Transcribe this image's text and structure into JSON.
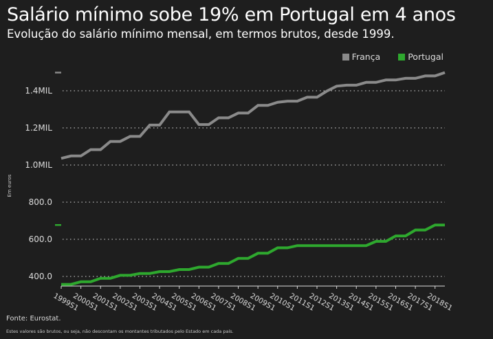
{
  "title": "Salário mínimo sobe 19% em Portugal em 4 anos",
  "subtitle": "Evolução do salário mínimo mensal, em termos brutos, desde 1999.",
  "source": "Fonte: Eurostat.",
  "note": "Estes valores são brutos, ou seja, não descontam os montantes tributados pelo Estado em cada país.",
  "chart_data": {
    "type": "line",
    "ylabel": "Em euros",
    "xlabel": "",
    "ylim": [
      360,
      1500
    ],
    "grid": true,
    "legend_position": "top-right",
    "yticks": [
      {
        "value": 400,
        "label": "400.0"
      },
      {
        "value": 600,
        "label": "600.0"
      },
      {
        "value": 800,
        "label": "800.0"
      },
      {
        "value": 1000,
        "label": "1.0MIL"
      },
      {
        "value": 1200,
        "label": "1.2MIL"
      },
      {
        "value": 1400,
        "label": "1.4MIL"
      }
    ],
    "xtick_labels": [
      "1999S1",
      "2000S1",
      "2001S1",
      "2002S1",
      "2003S1",
      "2004S1",
      "2005S1",
      "2006S1",
      "2007S1",
      "2008S1",
      "2009S1",
      "2010S1",
      "2011S1",
      "2012S1",
      "2013S1",
      "2014S1",
      "2015S1",
      "2016S1",
      "2017S1",
      "2018S1"
    ],
    "x": [
      "1999S1",
      "1999S2",
      "2000S1",
      "2000S2",
      "2001S1",
      "2001S2",
      "2002S1",
      "2002S2",
      "2003S1",
      "2003S2",
      "2004S1",
      "2004S2",
      "2005S1",
      "2005S2",
      "2006S1",
      "2006S2",
      "2007S1",
      "2007S2",
      "2008S1",
      "2008S2",
      "2009S1",
      "2009S2",
      "2010S1",
      "2010S2",
      "2011S1",
      "2011S2",
      "2012S1",
      "2012S2",
      "2013S1",
      "2013S2",
      "2014S1",
      "2014S2",
      "2015S1",
      "2015S2",
      "2016S1",
      "2016S2",
      "2017S1",
      "2017S2",
      "2018S1",
      "2018S2"
    ],
    "series": [
      {
        "name": "França",
        "color": "#8a8a8a",
        "values": [
          1036,
          1049,
          1049,
          1083,
          1083,
          1127,
          1127,
          1154,
          1154,
          1215,
          1215,
          1286,
          1286,
          1286,
          1218,
          1218,
          1254,
          1254,
          1280,
          1280,
          1321,
          1321,
          1338,
          1344,
          1344,
          1365,
          1365,
          1398,
          1425,
          1430,
          1430,
          1445,
          1445,
          1458,
          1458,
          1467,
          1467,
          1480,
          1480,
          1498
        ]
      },
      {
        "name": "Portugal",
        "color": "#2ea82e",
        "values": [
          357,
          357,
          371,
          371,
          390,
          390,
          406,
          406,
          416,
          416,
          426,
          426,
          437,
          437,
          450,
          450,
          470,
          470,
          497,
          497,
          525,
          525,
          554,
          554,
          566,
          566,
          566,
          566,
          566,
          566,
          566,
          566,
          589,
          589,
          618,
          618,
          650,
          650,
          677,
          677
        ]
      }
    ]
  }
}
